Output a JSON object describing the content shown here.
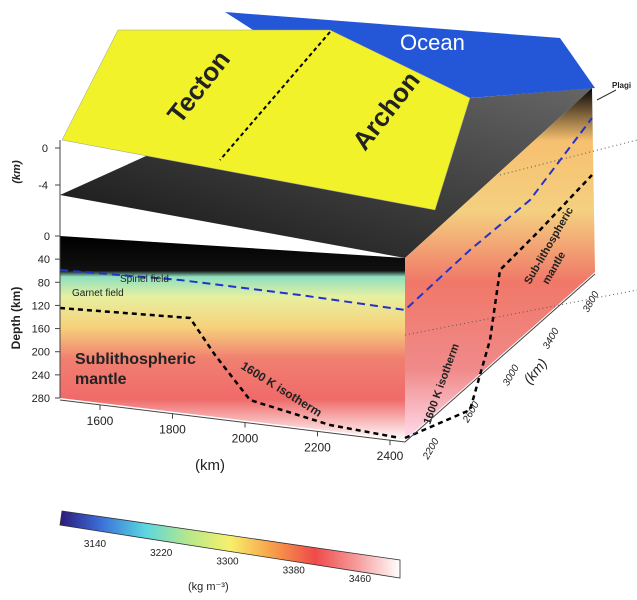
{
  "topography": {
    "ocean": "Ocean",
    "tecton": "Tecton",
    "archon": "Archon",
    "axis_label": "(km)",
    "ticks": [
      "0",
      "-4"
    ]
  },
  "callout": "Plagi",
  "depth_axis": {
    "label": "Depth (km)",
    "ticks": [
      "0",
      "40",
      "80",
      "120",
      "160",
      "200",
      "240",
      "280"
    ]
  },
  "front_face": {
    "spinel": "Spinel field",
    "garnet": "Garnet field",
    "mantle": [
      "Sublithospheric",
      "mantle"
    ],
    "isotherm": "1600 K isotherm"
  },
  "right_face": {
    "isotherm": "1600 K isotherm",
    "mantle": [
      "Sub-lithospheric",
      "mantle"
    ]
  },
  "x_axis": {
    "ticks": [
      "1600",
      "1800",
      "2000",
      "2200",
      "2400"
    ],
    "label": "(km)"
  },
  "y_axis": {
    "ticks": [
      "2200",
      "2600",
      "3000",
      "3400",
      "3800"
    ],
    "label": "(km)"
  },
  "colorbar": {
    "ticks": [
      "3140",
      "3220",
      "3300",
      "3380",
      "3460"
    ],
    "label": "(kg m⁻³)"
  }
}
